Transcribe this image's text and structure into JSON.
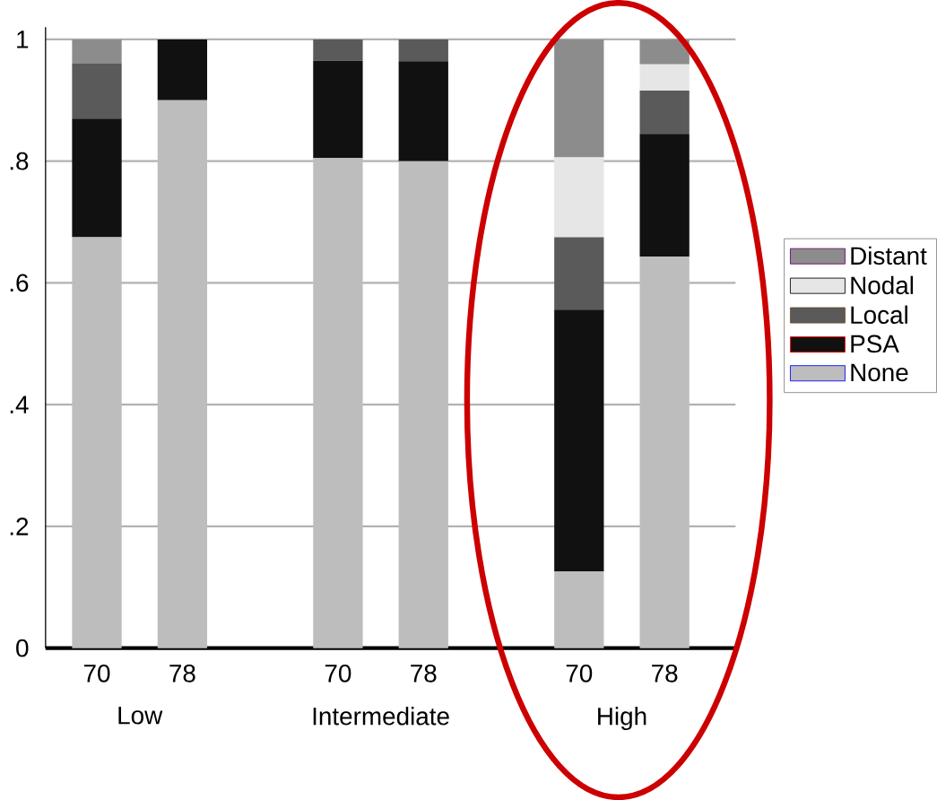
{
  "chart_data": {
    "type": "bar",
    "stacked": true,
    "categories": [
      "70",
      "78",
      "70",
      "78",
      "70",
      "78"
    ],
    "series": [
      {
        "name": "None",
        "color": "#bdbdbd",
        "values": [
          0.675,
          0.9,
          0.805,
          0.8,
          0.126,
          0.643
        ]
      },
      {
        "name": "PSA",
        "color": "#111111",
        "values": [
          0.195,
          0.1,
          0.16,
          0.164,
          0.43,
          0.202
        ]
      },
      {
        "name": "Local",
        "color": "#5a5a5a",
        "values": [
          0.09,
          0,
          0.035,
          0.036,
          0.119,
          0.071
        ]
      },
      {
        "name": "Nodal",
        "color": "#e6e6e6",
        "values": [
          0,
          0,
          0,
          0,
          0.131,
          0.043
        ]
      },
      {
        "name": "Distant",
        "color": "#8c8c8c",
        "values": [
          0.04,
          0,
          0,
          0,
          0.194,
          0.041
        ]
      }
    ],
    "ylim": [
      0,
      1.02
    ],
    "yticks": [
      0,
      {
        "value": 0.2,
        "label": ".2"
      },
      {
        "value": 0.4,
        "label": ".4"
      },
      {
        "value": 0.6,
        "label": ".6"
      },
      {
        "value": 0.8,
        "label": ".8"
      },
      1
    ],
    "grid": "y",
    "legend": "right",
    "annotations": [
      "Low",
      "Intermediate",
      "High"
    ]
  }
}
